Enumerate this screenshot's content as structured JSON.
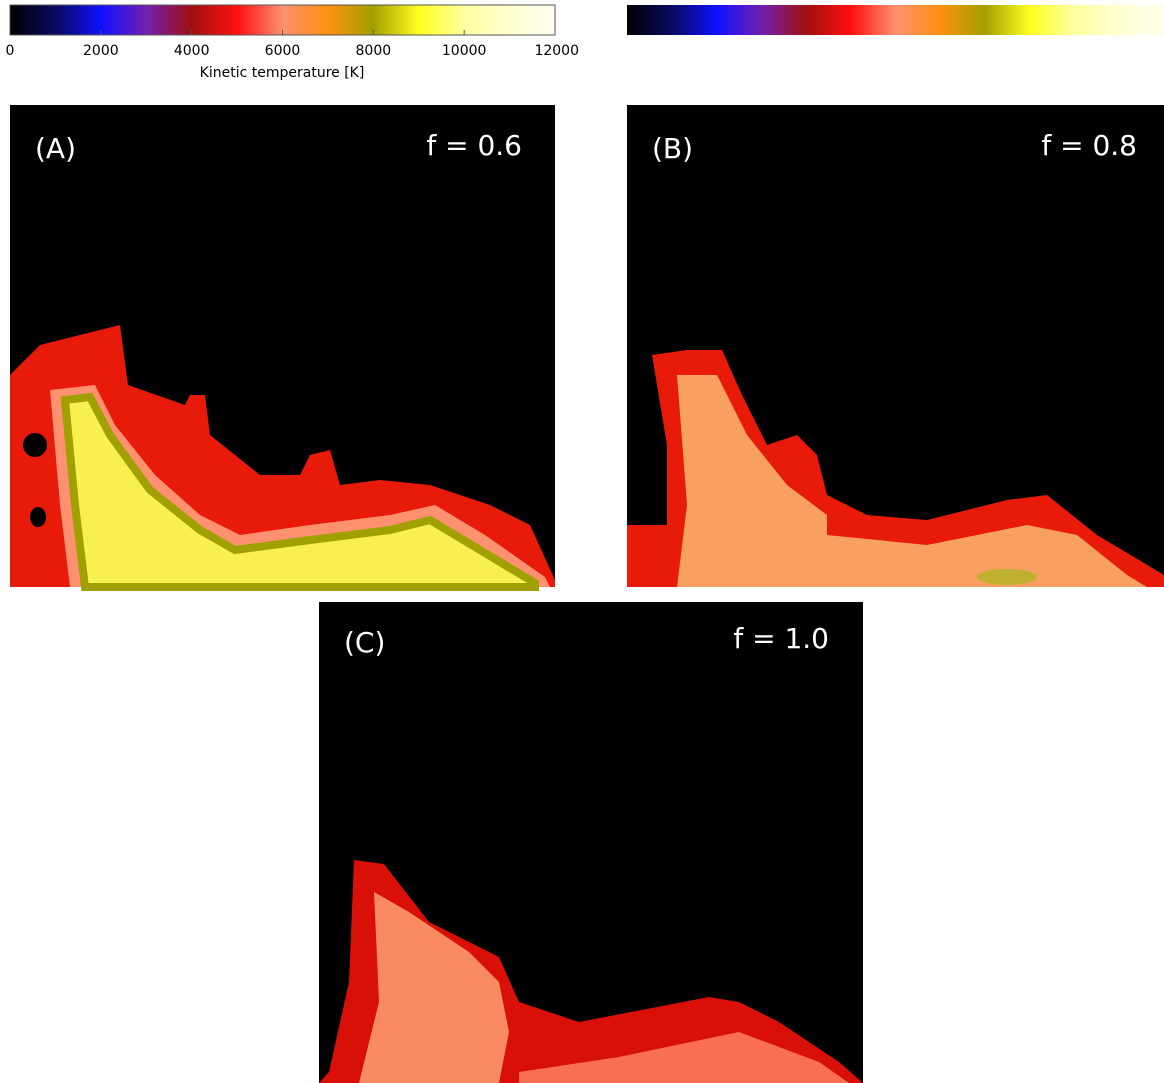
{
  "chart_data": {
    "type": "heatmap",
    "colorbar": {
      "label": "Kinetic temperature [K]",
      "lim": [
        0,
        12000
      ],
      "ticks": [
        0,
        2000,
        4000,
        6000,
        8000,
        10000,
        12000
      ],
      "colormap": [
        "#000000",
        "#0a0a60",
        "#1010ff",
        "#7020b0",
        "#a01010",
        "#ff1010",
        "#ff9070",
        "#ff9010",
        "#a0a000",
        "#ffff20",
        "#ffffa0",
        "#ffffd0",
        "#fffff0"
      ]
    },
    "panels": [
      {
        "label": "(A)",
        "annotation": "f = 0.6"
      },
      {
        "label": "(B)",
        "annotation": "f = 0.8"
      },
      {
        "label": "(C)",
        "annotation": "f = 1.0"
      }
    ]
  }
}
